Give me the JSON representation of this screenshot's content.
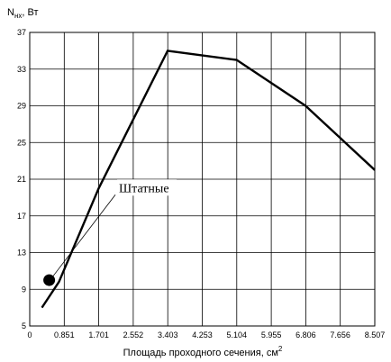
{
  "chart_data": {
    "type": "line",
    "ylabel": {
      "main": "N",
      "sub": "нх",
      "rest": ", Вт"
    },
    "xlabel": {
      "main": "Площадь проходного сечения, см",
      "sup": "2"
    },
    "x_ticks": [
      0,
      0.851,
      1.701,
      2.552,
      3.403,
      4.253,
      5.104,
      5.955,
      6.806,
      7.656,
      8.507
    ],
    "x_tick_labels": [
      "0",
      "0.851",
      "1.701",
      "2.552",
      "3.403",
      "4.253",
      "5.104",
      "5.955",
      "6.806",
      "7.656",
      "8.507"
    ],
    "y_ticks": [
      5,
      9,
      13,
      17,
      21,
      25,
      29,
      33,
      37
    ],
    "y_tick_labels": [
      "5",
      "9",
      "13",
      "17",
      "21",
      "25",
      "29",
      "33",
      "37"
    ],
    "xlim": [
      0,
      8.507
    ],
    "ylim": [
      5,
      37
    ],
    "grid": true,
    "series": [
      {
        "color": "#000000",
        "x": [
          0.3,
          0.72,
          1.7,
          3.4,
          5.1,
          6.8,
          8.507
        ],
        "y": [
          7.0,
          9.8,
          20.0,
          35.0,
          34.0,
          29.0,
          22.0
        ]
      }
    ],
    "marker": {
      "x": 0.48,
      "y": 10.0,
      "color": "#000000"
    },
    "annotation": {
      "text": "Штатные",
      "x": 2.2,
      "y": 19.6,
      "points_to_x": 0.48,
      "points_to_y": 10.0
    }
  }
}
